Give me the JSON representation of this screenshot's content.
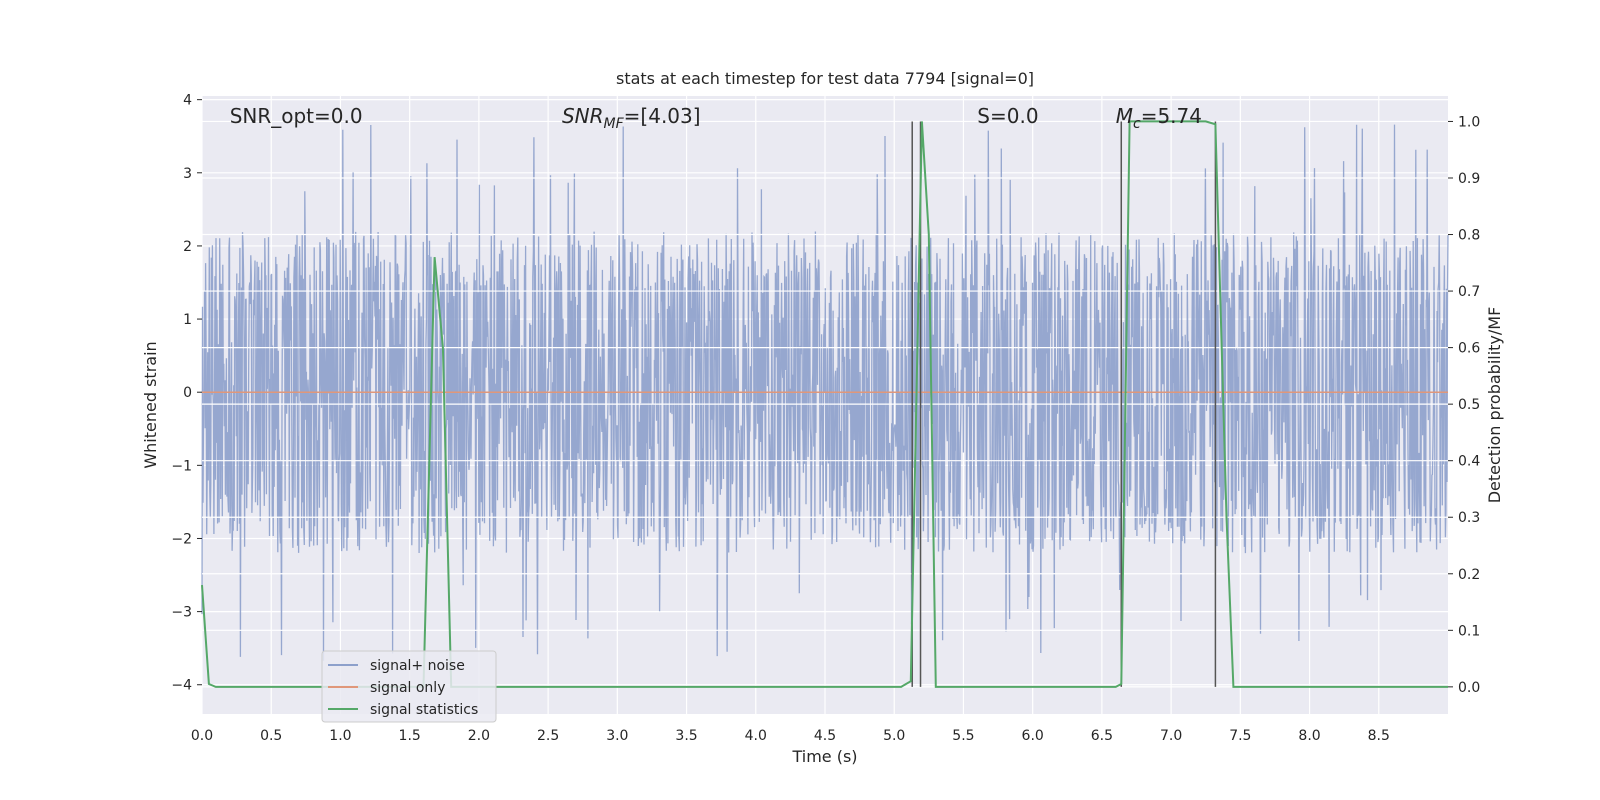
{
  "chart_data": {
    "type": "line",
    "title": "stats at each timestep for test data 7794 [signal=0]",
    "xlabel": "Time (s)",
    "ylabel_left": "Whitened strain",
    "ylabel_right": "Detection probability/MF",
    "xlim": [
      0.0,
      9.0
    ],
    "ylim_left": [
      -4.4,
      4.05
    ],
    "ylim_right": [
      -0.048,
      1.045
    ],
    "x_ticks": [
      "0.0",
      "0.5",
      "1.0",
      "1.5",
      "2.0",
      "2.5",
      "3.0",
      "3.5",
      "4.0",
      "4.5",
      "5.0",
      "5.5",
      "6.0",
      "6.5",
      "7.0",
      "7.5",
      "8.0",
      "8.5"
    ],
    "y_ticks_left": [
      "4",
      "3",
      "2",
      "1",
      "0",
      "−1",
      "−2",
      "−3",
      "−4"
    ],
    "y_ticks_right": [
      "1.0",
      "0.9",
      "0.8",
      "0.7",
      "0.6",
      "0.5",
      "0.4",
      "0.3",
      "0.2",
      "0.1",
      "0.0"
    ],
    "grid": true,
    "annotations": [
      {
        "text": "SNR_opt=0.0",
        "x": 0.2
      },
      {
        "text": "SNR_MF=[4.03]",
        "x": 2.6
      },
      {
        "text": "S=0.0",
        "x": 5.6
      },
      {
        "text": "M_c=5.74",
        "x": 6.6
      }
    ],
    "noise_envelope": {
      "note": "signal+noise whitened strain, noisy trace approx. between -2.5 and 2.5 with spikes to about +/-3.7",
      "typical_abs": 2.2,
      "max_abs": 3.7
    },
    "signal_only": {
      "y": 0.0
    },
    "statistics": {
      "x": [
        0.0,
        0.05,
        0.1,
        0.15,
        1.55,
        1.6,
        1.68,
        1.74,
        1.8,
        1.85,
        5.05,
        5.12,
        5.2,
        5.25,
        5.3,
        5.35,
        6.6,
        6.64,
        6.7,
        6.75,
        7.25,
        7.32,
        7.4,
        7.45,
        9.0
      ],
      "y": [
        0.18,
        0.005,
        0.0,
        0.0,
        0.0,
        0.0,
        0.76,
        0.6,
        0.0,
        0.0,
        0.0,
        0.01,
        1.0,
        0.8,
        0.0,
        0.0,
        0.0,
        0.005,
        1.0,
        1.0,
        1.0,
        0.995,
        0.3,
        0.0,
        0.0
      ]
    },
    "vlines": [
      5.13,
      5.19,
      6.64,
      7.32
    ],
    "legend": {
      "placement": "lower-left",
      "entries": [
        {
          "label": "signal+ noise",
          "color": "#8da0cb"
        },
        {
          "label": "signal only",
          "color": "#e0977a"
        },
        {
          "label": "signal statistics",
          "color": "#55a868"
        }
      ]
    },
    "colors": {
      "background": "#eaeaf2",
      "grid": "#ffffff",
      "noise": "#8da0cb",
      "signal_only": "#e0977a",
      "statistics": "#55a868",
      "vline": "#555555"
    }
  }
}
